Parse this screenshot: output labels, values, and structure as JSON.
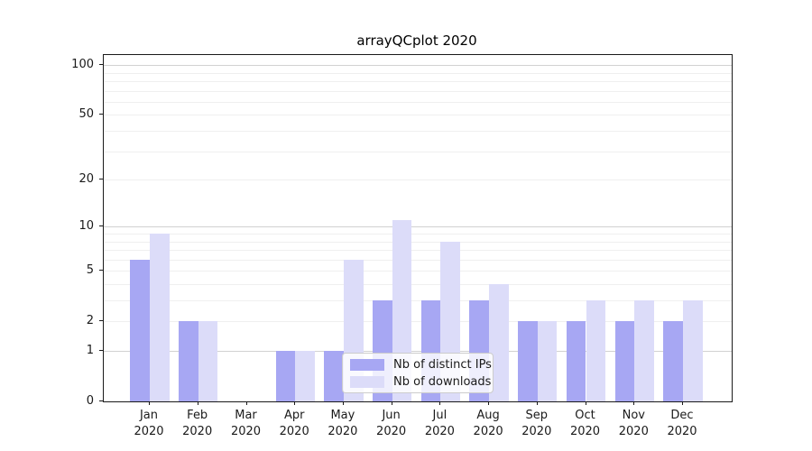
{
  "title": "arrayQCplot 2020",
  "chart_data": {
    "type": "bar",
    "title": "arrayQCplot 2020",
    "categories": [
      "Jan",
      "Feb",
      "Mar",
      "Apr",
      "May",
      "Jun",
      "Jul",
      "Aug",
      "Sep",
      "Oct",
      "Nov",
      "Dec"
    ],
    "year_label": "2020",
    "series": [
      {
        "name": "Nb of distinct IPs",
        "color": "#a7a7f3",
        "values": [
          6,
          2,
          0,
          1,
          1,
          3,
          3,
          3,
          2,
          2,
          2,
          2
        ]
      },
      {
        "name": "Nb of downloads",
        "color": "#dcdcf9",
        "values": [
          9,
          2,
          0,
          1,
          6,
          11,
          8,
          4,
          2,
          3,
          3,
          3
        ]
      }
    ],
    "yscale": "log1p",
    "yticks": [
      0,
      1,
      2,
      5,
      10,
      20,
      50,
      100
    ],
    "minor_gridlines": [
      2,
      3,
      4,
      5,
      6,
      7,
      8,
      9,
      20,
      30,
      40,
      50,
      60,
      70,
      80,
      90
    ],
    "major_gridlines": [
      1,
      10,
      100
    ],
    "ylim": [
      0,
      115
    ],
    "grid": true,
    "legend_position": "inside-bottom-center"
  }
}
